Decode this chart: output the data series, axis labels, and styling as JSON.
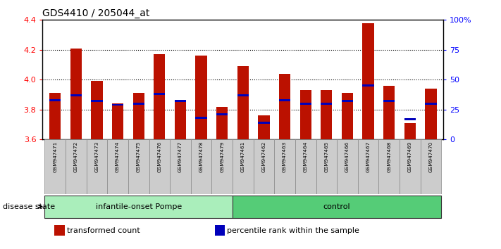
{
  "title": "GDS4410 / 205044_at",
  "samples": [
    "GSM947471",
    "GSM947472",
    "GSM947473",
    "GSM947474",
    "GSM947475",
    "GSM947476",
    "GSM947477",
    "GSM947478",
    "GSM947479",
    "GSM947461",
    "GSM947462",
    "GSM947463",
    "GSM947464",
    "GSM947465",
    "GSM947466",
    "GSM947467",
    "GSM947468",
    "GSM947469",
    "GSM947470"
  ],
  "transformed_count": [
    3.91,
    4.21,
    3.99,
    3.84,
    3.91,
    4.17,
    3.86,
    4.16,
    3.82,
    4.09,
    3.76,
    4.04,
    3.93,
    3.93,
    3.91,
    4.38,
    3.96,
    3.71,
    3.94
  ],
  "percentile_rank": [
    33,
    37,
    32,
    29,
    30,
    38,
    32,
    18,
    21,
    37,
    14,
    33,
    30,
    30,
    32,
    45,
    32,
    17,
    30
  ],
  "groups": [
    "infantile-onset Pompe",
    "infantile-onset Pompe",
    "infantile-onset Pompe",
    "infantile-onset Pompe",
    "infantile-onset Pompe",
    "infantile-onset Pompe",
    "infantile-onset Pompe",
    "infantile-onset Pompe",
    "infantile-onset Pompe",
    "control",
    "control",
    "control",
    "control",
    "control",
    "control",
    "control",
    "control",
    "control",
    "control"
  ],
  "group_colors": {
    "infantile-onset Pompe": "#AAEEBB",
    "control": "#55CC77"
  },
  "ylim_left": [
    3.6,
    4.4
  ],
  "ylim_right": [
    0,
    100
  ],
  "yticks_left": [
    3.6,
    3.8,
    4.0,
    4.2,
    4.4
  ],
  "yticks_right": [
    0,
    25,
    50,
    75,
    100
  ],
  "ytick_labels_right": [
    "0",
    "25",
    "50",
    "75",
    "100%"
  ],
  "bar_color": "#BB1100",
  "blue_marker_color": "#0000BB",
  "bar_bottom": 3.6,
  "grid_values": [
    3.8,
    4.0,
    4.2
  ],
  "disease_state_label": "disease state",
  "sample_box_color": "#CCCCCC",
  "legend_items": [
    {
      "label": "transformed count",
      "color": "#BB1100"
    },
    {
      "label": "percentile rank within the sample",
      "color": "#0000BB"
    }
  ]
}
